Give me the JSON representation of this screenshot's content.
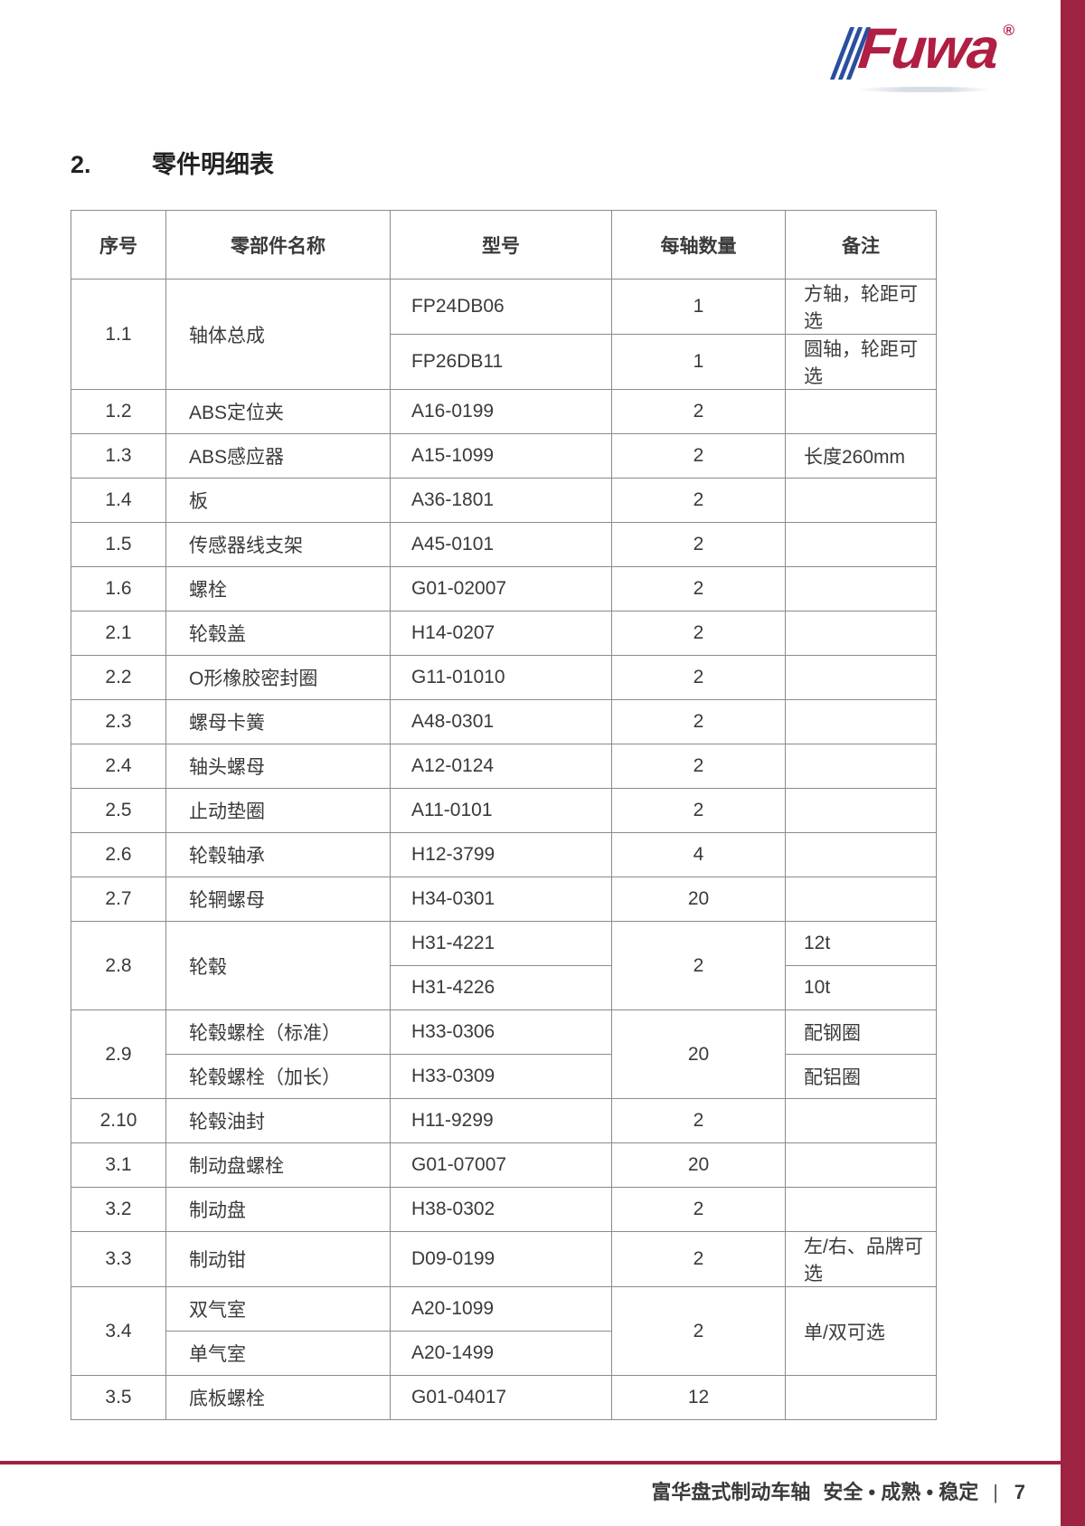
{
  "colors": {
    "brand_red": "#9e2242",
    "logo_red": "#b01e43",
    "stripe_blue": "#2b4f9f",
    "line_gray": "#8b8b8b",
    "text_dark": "#3a3a3a"
  },
  "logo": {
    "text": "Fuwa",
    "registered": "®"
  },
  "heading": {
    "number": "2.",
    "title": "零件明细表"
  },
  "table": {
    "headers": [
      "序号",
      "零部件名称",
      "型号",
      "每轴数量",
      "备注"
    ],
    "rows": [
      {
        "no": "1.1",
        "name": "轴体总成",
        "qty": null,
        "remark": null,
        "subrows": [
          {
            "model": "FP24DB06",
            "qty": "1",
            "remark": "方轴，轮距可选"
          },
          {
            "model": "FP26DB11",
            "qty": "1",
            "remark": "圆轴，轮距可选"
          }
        ]
      },
      {
        "no": "1.2",
        "name": "ABS定位夹",
        "qty": "2",
        "remark": "",
        "subrows": [
          {
            "model": "A16-0199"
          }
        ]
      },
      {
        "no": "1.3",
        "name": "ABS感应器",
        "qty": "2",
        "remark": "长度260mm",
        "subrows": [
          {
            "model": "A15-1099"
          }
        ]
      },
      {
        "no": "1.4",
        "name": "板",
        "qty": "2",
        "remark": "",
        "subrows": [
          {
            "model": "A36-1801"
          }
        ]
      },
      {
        "no": "1.5",
        "name": "传感器线支架",
        "qty": "2",
        "remark": "",
        "subrows": [
          {
            "model": "A45-0101"
          }
        ]
      },
      {
        "no": "1.6",
        "name": "螺栓",
        "qty": "2",
        "remark": "",
        "subrows": [
          {
            "model": "G01-02007"
          }
        ]
      },
      {
        "no": "2.1",
        "name": "轮毂盖",
        "qty": "2",
        "remark": "",
        "subrows": [
          {
            "model": "H14-0207"
          }
        ]
      },
      {
        "no": "2.2",
        "name": "O形橡胶密封圈",
        "qty": "2",
        "remark": "",
        "subrows": [
          {
            "model": "G11-01010"
          }
        ]
      },
      {
        "no": "2.3",
        "name": "螺母卡簧",
        "qty": "2",
        "remark": "",
        "subrows": [
          {
            "model": "A48-0301"
          }
        ]
      },
      {
        "no": "2.4",
        "name": "轴头螺母",
        "qty": "2",
        "remark": "",
        "subrows": [
          {
            "model": "A12-0124"
          }
        ]
      },
      {
        "no": "2.5",
        "name": "止动垫圈",
        "qty": "2",
        "remark": "",
        "subrows": [
          {
            "model": "A11-0101"
          }
        ]
      },
      {
        "no": "2.6",
        "name": "轮毂轴承",
        "qty": "4",
        "remark": "",
        "subrows": [
          {
            "model": "H12-3799"
          }
        ]
      },
      {
        "no": "2.7",
        "name": "轮辋螺母",
        "qty": "20",
        "remark": "",
        "subrows": [
          {
            "model": "H34-0301"
          }
        ]
      },
      {
        "no": "2.8",
        "name": "轮毂",
        "qty": "2",
        "remark": null,
        "subrows": [
          {
            "model": "H31-4221",
            "remark": "12t"
          },
          {
            "model": "H31-4226",
            "remark": "10t"
          }
        ]
      },
      {
        "no": "2.9",
        "name": null,
        "qty": "20",
        "remark": null,
        "subrows": [
          {
            "name": "轮毂螺栓（标准）",
            "model": "H33-0306",
            "remark": "配钢圈"
          },
          {
            "name": "轮毂螺栓（加长）",
            "model": "H33-0309",
            "remark": "配铝圈"
          }
        ]
      },
      {
        "no": "2.10",
        "name": "轮毂油封",
        "qty": "2",
        "remark": "",
        "subrows": [
          {
            "model": "H11-9299"
          }
        ]
      },
      {
        "no": "3.1",
        "name": "制动盘螺栓",
        "qty": "20",
        "remark": "",
        "subrows": [
          {
            "model": "G01-07007"
          }
        ]
      },
      {
        "no": "3.2",
        "name": "制动盘",
        "qty": "2",
        "remark": "",
        "subrows": [
          {
            "model": "H38-0302"
          }
        ]
      },
      {
        "no": "3.3",
        "name": "制动钳",
        "qty": "2",
        "remark": "左/右、品牌可选",
        "subrows": [
          {
            "model": "D09-0199"
          }
        ]
      },
      {
        "no": "3.4",
        "name": null,
        "qty": "2",
        "remark": "单/双可选",
        "subrows": [
          {
            "name": "双气室",
            "model": "A20-1099"
          },
          {
            "name": "单气室",
            "model": "A20-1499"
          }
        ]
      },
      {
        "no": "3.5",
        "name": "底板螺栓",
        "qty": "12",
        "remark": "",
        "subrows": [
          {
            "model": "G01-04017"
          }
        ]
      }
    ]
  },
  "footer": {
    "title": "富华盘式制动车轴",
    "slogan": "安全 • 成熟 • 稳定",
    "separator": "|",
    "page_number": "7"
  }
}
